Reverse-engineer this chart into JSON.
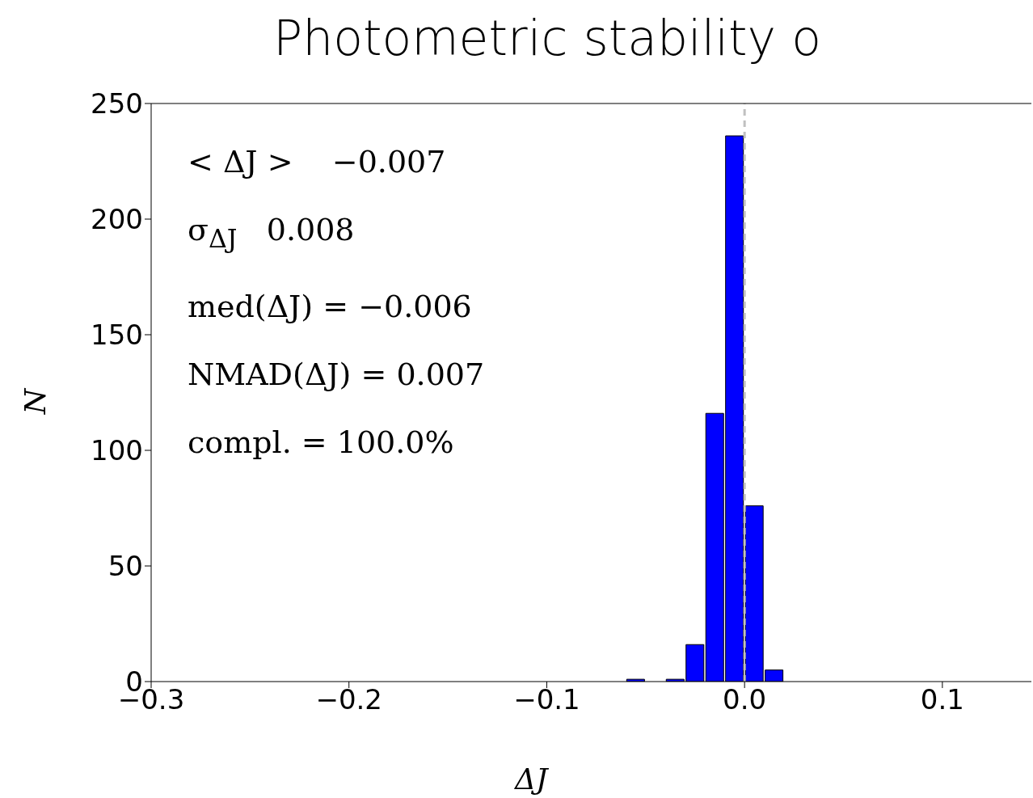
{
  "chart_data": {
    "type": "histogram",
    "title": "Photometric stability o",
    "xlabel": "ΔJ",
    "ylabel": "N",
    "bins": [
      -0.06,
      -0.05,
      -0.04,
      -0.03,
      -0.02,
      -0.01,
      0.0,
      0.01,
      0.02
    ],
    "values": [
      1,
      0,
      1,
      16,
      116,
      236,
      76,
      5
    ],
    "color": "#0000ff",
    "xlim": [
      -0.3,
      0.145
    ],
    "xticks": [
      {
        "value": -0.3,
        "label": "−0.3"
      },
      {
        "value": -0.2,
        "label": "−0.2"
      },
      {
        "value": -0.1,
        "label": "−0.1"
      },
      {
        "value": 0,
        "label": "0.0"
      },
      {
        "value": 0.1,
        "label": "0.1"
      }
    ],
    "ylim": [
      0,
      250
    ],
    "yticks": [
      0,
      50,
      100,
      150,
      200,
      250
    ],
    "ref_lines": [
      {
        "axis": "x",
        "value": 0,
        "color": "#c0c0c0",
        "line_style": "dashed"
      }
    ],
    "annotations": [
      "< ΔJ >    −0.007",
      "σ$_{ΔJ}$   0.008",
      "med(ΔJ) = −0.006",
      "NMAD(ΔJ) = 0.007",
      "compl. = 100.0%"
    ],
    "line_style": "solid"
  }
}
